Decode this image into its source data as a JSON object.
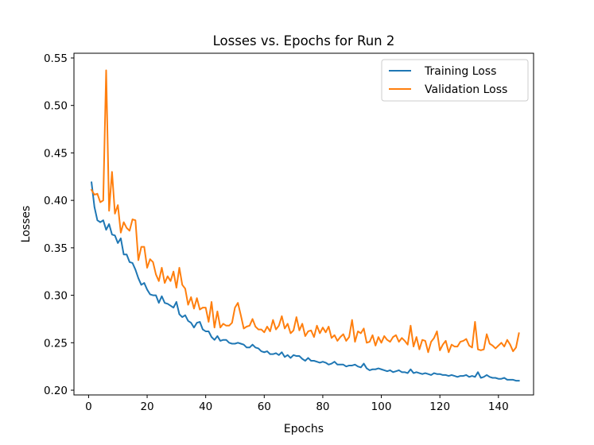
{
  "chart_data": {
    "type": "line",
    "title": "Losses vs. Epochs for Run 2",
    "xlabel": "Epochs",
    "ylabel": "Losses",
    "xlim": [
      -5,
      152
    ],
    "ylim": [
      0.195,
      0.555
    ],
    "xticks": [
      0,
      20,
      40,
      60,
      80,
      100,
      120,
      140
    ],
    "xtick_labels": [
      "0",
      "20",
      "40",
      "60",
      "80",
      "100",
      "120",
      "140"
    ],
    "yticks": [
      0.2,
      0.25,
      0.3,
      0.35,
      0.4,
      0.45,
      0.5,
      0.55
    ],
    "ytick_labels": [
      "0.20",
      "0.25",
      "0.30",
      "0.35",
      "0.40",
      "0.45",
      "0.50",
      "0.55"
    ],
    "grid": false,
    "legend_position": "top-right",
    "series": [
      {
        "name": "Training Loss",
        "color": "#1f77b4",
        "x": [
          1,
          2,
          3,
          4,
          5,
          6,
          7,
          8,
          9,
          10,
          11,
          12,
          13,
          14,
          15,
          16,
          17,
          18,
          19,
          20,
          21,
          22,
          23,
          24,
          25,
          26,
          27,
          28,
          29,
          30,
          31,
          32,
          33,
          34,
          35,
          36,
          37,
          38,
          39,
          40,
          41,
          42,
          43,
          44,
          45,
          46,
          47,
          48,
          49,
          50,
          51,
          52,
          53,
          54,
          55,
          56,
          57,
          58,
          59,
          60,
          61,
          62,
          63,
          64,
          65,
          66,
          67,
          68,
          69,
          70,
          71,
          72,
          73,
          74,
          75,
          76,
          77,
          78,
          79,
          80,
          81,
          82,
          83,
          84,
          85,
          86,
          87,
          88,
          89,
          90,
          91,
          92,
          93,
          94,
          95,
          96,
          97,
          98,
          99,
          100,
          101,
          102,
          103,
          104,
          105,
          106,
          107,
          108,
          109,
          110,
          111,
          112,
          113,
          114,
          115,
          116,
          117,
          118,
          119,
          120,
          121,
          122,
          123,
          124,
          125,
          126,
          127,
          128,
          129,
          130,
          131,
          132,
          133,
          134,
          135,
          136,
          137,
          138,
          139,
          140,
          141,
          142,
          143,
          144,
          145,
          146,
          147
        ],
        "values": [
          0.419,
          0.393,
          0.379,
          0.377,
          0.379,
          0.369,
          0.375,
          0.364,
          0.363,
          0.355,
          0.36,
          0.343,
          0.343,
          0.335,
          0.334,
          0.327,
          0.318,
          0.311,
          0.313,
          0.306,
          0.301,
          0.3,
          0.3,
          0.292,
          0.299,
          0.292,
          0.291,
          0.289,
          0.287,
          0.293,
          0.28,
          0.277,
          0.279,
          0.273,
          0.271,
          0.266,
          0.271,
          0.272,
          0.264,
          0.262,
          0.262,
          0.256,
          0.253,
          0.257,
          0.252,
          0.253,
          0.253,
          0.25,
          0.249,
          0.249,
          0.25,
          0.249,
          0.248,
          0.245,
          0.245,
          0.248,
          0.245,
          0.244,
          0.241,
          0.24,
          0.241,
          0.238,
          0.238,
          0.239,
          0.237,
          0.24,
          0.235,
          0.237,
          0.234,
          0.237,
          0.236,
          0.236,
          0.233,
          0.231,
          0.234,
          0.231,
          0.231,
          0.23,
          0.229,
          0.23,
          0.229,
          0.227,
          0.228,
          0.23,
          0.227,
          0.227,
          0.227,
          0.225,
          0.226,
          0.226,
          0.227,
          0.225,
          0.224,
          0.228,
          0.223,
          0.221,
          0.222,
          0.222,
          0.223,
          0.222,
          0.221,
          0.22,
          0.221,
          0.219,
          0.22,
          0.221,
          0.219,
          0.219,
          0.218,
          0.222,
          0.218,
          0.219,
          0.218,
          0.217,
          0.218,
          0.217,
          0.216,
          0.218,
          0.217,
          0.217,
          0.216,
          0.216,
          0.215,
          0.216,
          0.215,
          0.214,
          0.215,
          0.215,
          0.216,
          0.214,
          0.215,
          0.214,
          0.219,
          0.213,
          0.214,
          0.216,
          0.214,
          0.213,
          0.213,
          0.212,
          0.212,
          0.213,
          0.211,
          0.211,
          0.211,
          0.21,
          0.21
        ]
      },
      {
        "name": "Validation Loss",
        "color": "#ff7f0e",
        "x": [
          1,
          2,
          3,
          4,
          5,
          6,
          7,
          8,
          9,
          10,
          11,
          12,
          13,
          14,
          15,
          16,
          17,
          18,
          19,
          20,
          21,
          22,
          23,
          24,
          25,
          26,
          27,
          28,
          29,
          30,
          31,
          32,
          33,
          34,
          35,
          36,
          37,
          38,
          39,
          40,
          41,
          42,
          43,
          44,
          45,
          46,
          47,
          48,
          49,
          50,
          51,
          52,
          53,
          54,
          55,
          56,
          57,
          58,
          59,
          60,
          61,
          62,
          63,
          64,
          65,
          66,
          67,
          68,
          69,
          70,
          71,
          72,
          73,
          74,
          75,
          76,
          77,
          78,
          79,
          80,
          81,
          82,
          83,
          84,
          85,
          86,
          87,
          88,
          89,
          90,
          91,
          92,
          93,
          94,
          95,
          96,
          97,
          98,
          99,
          100,
          101,
          102,
          103,
          104,
          105,
          106,
          107,
          108,
          109,
          110,
          111,
          112,
          113,
          114,
          115,
          116,
          117,
          118,
          119,
          120,
          121,
          122,
          123,
          124,
          125,
          126,
          127,
          128,
          129,
          130,
          131,
          132,
          133,
          134,
          135,
          136,
          137,
          138,
          139,
          140,
          141,
          142,
          143,
          144,
          145,
          146,
          147
        ],
        "values": [
          0.411,
          0.406,
          0.407,
          0.398,
          0.4,
          0.537,
          0.389,
          0.43,
          0.386,
          0.395,
          0.366,
          0.377,
          0.371,
          0.368,
          0.38,
          0.379,
          0.337,
          0.351,
          0.351,
          0.329,
          0.338,
          0.335,
          0.322,
          0.315,
          0.329,
          0.313,
          0.32,
          0.315,
          0.325,
          0.308,
          0.329,
          0.311,
          0.307,
          0.29,
          0.298,
          0.286,
          0.297,
          0.285,
          0.287,
          0.287,
          0.272,
          0.293,
          0.266,
          0.283,
          0.266,
          0.27,
          0.268,
          0.268,
          0.271,
          0.287,
          0.292,
          0.279,
          0.265,
          0.267,
          0.268,
          0.275,
          0.267,
          0.264,
          0.264,
          0.261,
          0.267,
          0.262,
          0.274,
          0.264,
          0.268,
          0.278,
          0.265,
          0.27,
          0.26,
          0.263,
          0.277,
          0.263,
          0.27,
          0.257,
          0.262,
          0.263,
          0.256,
          0.268,
          0.26,
          0.266,
          0.261,
          0.267,
          0.255,
          0.258,
          0.252,
          0.256,
          0.259,
          0.252,
          0.256,
          0.274,
          0.251,
          0.262,
          0.26,
          0.265,
          0.25,
          0.251,
          0.258,
          0.247,
          0.256,
          0.25,
          0.257,
          0.253,
          0.251,
          0.256,
          0.258,
          0.251,
          0.255,
          0.252,
          0.248,
          0.268,
          0.246,
          0.256,
          0.243,
          0.253,
          0.252,
          0.24,
          0.251,
          0.255,
          0.262,
          0.242,
          0.248,
          0.252,
          0.24,
          0.248,
          0.246,
          0.246,
          0.251,
          0.252,
          0.254,
          0.247,
          0.245,
          0.272,
          0.243,
          0.242,
          0.243,
          0.259,
          0.249,
          0.247,
          0.244,
          0.247,
          0.25,
          0.246,
          0.253,
          0.248,
          0.241,
          0.245,
          0.26
        ]
      }
    ]
  }
}
